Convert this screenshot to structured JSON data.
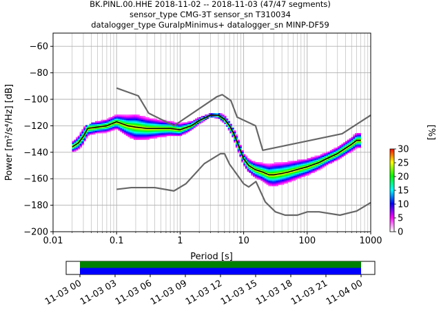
{
  "header": {
    "line1": "BK.PINL.00.HHE   2018-11-02 -- 2018-11-03  (47/47 segments)",
    "line2": "sensor_type CMG-3T sensor_sn T310034",
    "line3": "datalogger_type GuralpMinimus+ datalogger_sn MINP-DF59"
  },
  "chart_data": [
    {
      "type": "heatmap",
      "xlabel": "Period [s]",
      "ylabel": "Power [m²/s⁴/Hz] [dB]",
      "x_scale": "log",
      "xlim": [
        0.01,
        1000
      ],
      "ylim": [
        -200,
        -50
      ],
      "x_ticks": [
        0.01,
        0.1,
        1,
        10,
        100,
        1000
      ],
      "x_tick_labels": [
        "0.01",
        "0.1",
        "1",
        "10",
        "100",
        "1000"
      ],
      "y_ticks": [
        -200,
        -180,
        -160,
        -140,
        -120,
        -100,
        -80,
        -60
      ],
      "y_tick_labels": [
        "−200",
        "−180",
        "−160",
        "−140",
        "−120",
        "−100",
        "−80",
        "−60"
      ],
      "grid": true,
      "colorbar": {
        "label": "[%]",
        "range": [
          0,
          30
        ],
        "ticks": [
          0,
          5,
          10,
          15,
          20,
          25,
          30
        ],
        "tick_labels": [
          "0",
          "5",
          "10",
          "15",
          "20",
          "25",
          "30"
        ],
        "colormap": [
          "#ffffff",
          "#ff00ff",
          "#0000ff",
          "#00ffff",
          "#00ff00",
          "#ffff00",
          "#ff0000"
        ]
      },
      "median": {
        "period": [
          0.02,
          0.025,
          0.03,
          0.035,
          0.05,
          0.07,
          0.1,
          0.15,
          0.2,
          0.3,
          0.5,
          0.7,
          1,
          1.5,
          2,
          3,
          4,
          5,
          6,
          7,
          8,
          10,
          12,
          15,
          20,
          25,
          30,
          40,
          50,
          70,
          100,
          150,
          200,
          300,
          400,
          500,
          600,
          700
        ],
        "power": [
          -136,
          -133,
          -128,
          -122,
          -121,
          -120,
          -117,
          -120,
          -121,
          -122,
          -122,
          -122,
          -123,
          -120,
          -116,
          -112,
          -112,
          -115,
          -120,
          -126,
          -133,
          -145,
          -150,
          -153,
          -155,
          -157,
          -157,
          -156,
          -155,
          -153,
          -151,
          -148,
          -145,
          -141,
          -137,
          -134,
          -131,
          -131
        ]
      },
      "psd_spread": {
        "period": [
          0.02,
          0.03,
          0.05,
          0.1,
          0.2,
          0.5,
          1,
          2,
          3,
          5,
          8,
          10,
          15,
          20,
          30,
          50,
          100,
          200,
          300,
          500,
          700
        ],
        "low": [
          -140,
          -134,
          -126,
          -123,
          -130,
          -128,
          -128,
          -119,
          -114,
          -118,
          -138,
          -150,
          -158,
          -162,
          -167,
          -164,
          -159,
          -151,
          -145,
          -140,
          -136
        ],
        "high": [
          -132,
          -122,
          -117,
          -112,
          -110,
          -115,
          -118,
          -114,
          -111,
          -112,
          -128,
          -141,
          -146,
          -148,
          -149,
          -148,
          -146,
          -141,
          -135,
          -129,
          -124
        ]
      },
      "noise_models": [
        {
          "period": [
            0.1,
            0.22,
            0.32,
            0.8,
            3.8,
            4.6,
            6.3,
            7.9,
            15.4,
            20,
            354.8,
            1000
          ],
          "power": [
            -91.5,
            -97.4,
            -110.5,
            -120,
            -98,
            -96.5,
            -101,
            -113.5,
            -120,
            -138.5,
            -126,
            -112
          ]
        },
        {
          "period": [
            0.1,
            0.17,
            0.4,
            0.8,
            1.24,
            2.4,
            4.3,
            5,
            6,
            10,
            12,
            15.6,
            21.9,
            31.6,
            45,
            70,
            101,
            154,
            328,
            600,
            1000
          ],
          "power": [
            -168,
            -166.7,
            -166.7,
            -169.2,
            -163.7,
            -148.6,
            -141.1,
            -141.1,
            -149,
            -163.8,
            -166.2,
            -162.1,
            -177.5,
            -185,
            -187.5,
            -187.5,
            -185,
            -185,
            -187.5,
            -184.4,
            -178
          ]
        }
      ]
    },
    {
      "type": "table",
      "x_tick_labels": [
        "11-03 00",
        "11-03 03",
        "11-03 06",
        "11-03 09",
        "11-03 12",
        "11-03 15",
        "11-03 18",
        "11-03 21",
        "11-04 00"
      ],
      "coverage": [
        {
          "color": "#008000",
          "start": 0,
          "end": 1
        },
        {
          "color": "#0000ff",
          "start": 0,
          "end": 1
        }
      ]
    }
  ]
}
